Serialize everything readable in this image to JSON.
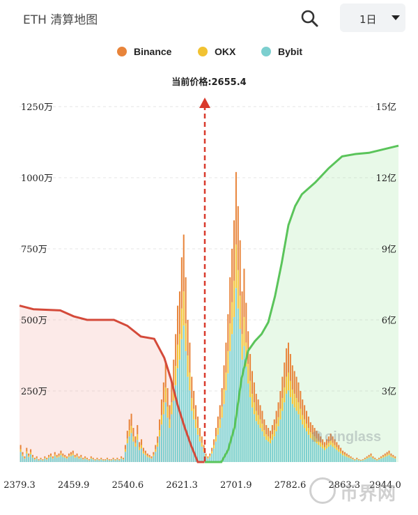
{
  "header": {
    "title": "ETH 清算地图",
    "range_label": "1日"
  },
  "chart_data": {
    "type": "bar",
    "current_price_label": "当前价格:2655.4",
    "current_price": 2655.4,
    "x_tick_labels": [
      "2379.3",
      "2459.9",
      "2540.6",
      "2621.3",
      "2701.9",
      "2782.6",
      "2863.3",
      "2944.0"
    ],
    "x_ticks": [
      2379.3,
      2459.9,
      2540.6,
      2621.3,
      2701.9,
      2782.6,
      2863.3,
      2944.0
    ],
    "xlim": [
      2379.3,
      2944.0
    ],
    "y_left_tick_labels": [
      "250万",
      "500万",
      "750万",
      "1000万",
      "1250万"
    ],
    "y_left_ticks": [
      2500000,
      5000000,
      7500000,
      10000000,
      12500000
    ],
    "ylim_left": [
      0,
      12500000
    ],
    "y_right_tick_labels": [
      "3亿",
      "6亿",
      "9亿",
      "12亿",
      "15亿"
    ],
    "y_right_ticks": [
      300000000,
      600000000,
      900000000,
      1200000000,
      1500000000
    ],
    "ylim_right": [
      0,
      1500000000
    ],
    "legend": [
      "Binance",
      "OKX",
      "Bybit"
    ],
    "colors": {
      "Binance": "#e8843a",
      "OKX": "#f1c232",
      "Bybit": "#7ccfcf",
      "long_cumulative": "#d44a3a",
      "short_cumulative": "#5ac45a"
    },
    "bar_prices": [
      2381,
      2384,
      2387,
      2390,
      2393,
      2396,
      2399,
      2402,
      2405,
      2408,
      2411,
      2414,
      2417,
      2420,
      2423,
      2426,
      2429,
      2432,
      2435,
      2438,
      2441,
      2444,
      2447,
      2450,
      2453,
      2456,
      2459,
      2462,
      2465,
      2468,
      2471,
      2474,
      2477,
      2480,
      2483,
      2486,
      2489,
      2492,
      2495,
      2498,
      2501,
      2504,
      2507,
      2510,
      2513,
      2516,
      2519,
      2522,
      2525,
      2528,
      2531,
      2534,
      2537,
      2540,
      2543,
      2546,
      2549,
      2552,
      2555,
      2558,
      2561,
      2564,
      2567,
      2570,
      2573,
      2576,
      2579,
      2582,
      2585,
      2588,
      2591,
      2594,
      2597,
      2600,
      2603,
      2606,
      2609,
      2612,
      2615,
      2618,
      2621,
      2624,
      2627,
      2630,
      2633,
      2636,
      2639,
      2642,
      2645,
      2648,
      2651,
      2654,
      2657,
      2660,
      2663,
      2666,
      2669,
      2672,
      2675,
      2678,
      2681,
      2684,
      2687,
      2690,
      2693,
      2696,
      2699,
      2702,
      2705,
      2708,
      2711,
      2714,
      2717,
      2720,
      2723,
      2726,
      2729,
      2732,
      2735,
      2738,
      2741,
      2744,
      2747,
      2750,
      2753,
      2756,
      2759,
      2762,
      2765,
      2768,
      2771,
      2774,
      2777,
      2780,
      2783,
      2786,
      2789,
      2792,
      2795,
      2798,
      2801,
      2804,
      2807,
      2810,
      2813,
      2816,
      2819,
      2822,
      2825,
      2828,
      2831,
      2834,
      2837,
      2840,
      2843,
      2846,
      2849,
      2852,
      2855,
      2858,
      2861,
      2864,
      2867,
      2870,
      2873,
      2876,
      2879,
      2882,
      2885,
      2888,
      2891,
      2894,
      2897,
      2900,
      2903,
      2906,
      2909,
      2912,
      2915,
      2918,
      2921,
      2924,
      2927,
      2930,
      2933,
      2936,
      2939,
      2942
    ],
    "bar_totals": [
      600000,
      350000,
      200000,
      500000,
      300000,
      450000,
      250000,
      150000,
      200000,
      100000,
      150000,
      100000,
      200000,
      150000,
      250000,
      300000,
      200000,
      350000,
      250000,
      300000,
      400000,
      300000,
      250000,
      200000,
      300000,
      350000,
      400000,
      250000,
      300000,
      200000,
      250000,
      150000,
      200000,
      150000,
      100000,
      200000,
      150000,
      100000,
      150000,
      100000,
      150000,
      100000,
      100000,
      150000,
      100000,
      100000,
      150000,
      100000,
      150000,
      100000,
      200000,
      150000,
      600000,
      1100000,
      1500000,
      1700000,
      1200000,
      900000,
      1300000,
      700000,
      800000,
      500000,
      400000,
      300000,
      250000,
      200000,
      350000,
      600000,
      900000,
      1500000,
      2200000,
      2800000,
      3500000,
      2600000,
      2000000,
      2800000,
      3600000,
      4500000,
      5500000,
      6000000,
      7200000,
      8000000,
      6500000,
      5000000,
      4200000,
      3000000,
      2500000,
      2000000,
      1600000,
      1200000,
      900000,
      600000,
      300000,
      200000,
      300000,
      500000,
      800000,
      1200000,
      1600000,
      2000000,
      2600000,
      3400000,
      4200000,
      5200000,
      6500000,
      7500000,
      8500000,
      10200000,
      9000000,
      7800000,
      6000000,
      6800000,
      5600000,
      4600000,
      3800000,
      3200000,
      2800000,
      2400000,
      2200000,
      2000000,
      1800000,
      1500000,
      1300000,
      1200000,
      1100000,
      1300000,
      1500000,
      1800000,
      2100000,
      2500000,
      3000000,
      3500000,
      4000000,
      4200000,
      3800000,
      3400000,
      3200000,
      3000000,
      2800000,
      2500000,
      2200000,
      2000000,
      1800000,
      1600000,
      1400000,
      1300000,
      1200000,
      1100000,
      1000000,
      900000,
      800000,
      700000,
      800000,
      900000,
      1000000,
      900000,
      800000,
      700000,
      600000,
      500000,
      400000,
      350000,
      300000,
      250000,
      200000,
      150000,
      100000,
      150000,
      100000,
      80000,
      100000,
      150000,
      200000,
      250000,
      300000,
      200000,
      150000,
      100000,
      150000,
      200000,
      250000,
      300000,
      350000,
      400000,
      300000,
      250000,
      200000
    ],
    "exchange_share": {
      "Binance": 0.25,
      "OKX": 0.15,
      "Bybit": 0.6
    },
    "long_cumulative": {
      "price": [
        2379.3,
        2400,
        2440,
        2460,
        2480,
        2500,
        2520,
        2540,
        2560,
        2580,
        2595,
        2605,
        2615,
        2625,
        2635,
        2645,
        2650,
        2655
      ],
      "value": [
        660000000,
        645000000,
        640000000,
        615000000,
        600000000,
        600000000,
        600000000,
        575000000,
        530000000,
        520000000,
        440000000,
        350000000,
        240000000,
        150000000,
        70000000,
        0,
        0,
        0
      ]
    },
    "short_cumulative": {
      "price": [
        2655.4,
        2680,
        2690,
        2700,
        2710,
        2720,
        2730,
        2740,
        2750,
        2760,
        2770,
        2780,
        2790,
        2800,
        2820,
        2840,
        2860,
        2880,
        2900,
        2944
      ],
      "value": [
        0,
        0,
        50000000,
        150000000,
        350000000,
        470000000,
        510000000,
        540000000,
        590000000,
        700000000,
        840000000,
        1000000000,
        1080000000,
        1130000000,
        1180000000,
        1240000000,
        1290000000,
        1300000000,
        1305000000,
        1335000000
      ]
    }
  }
}
